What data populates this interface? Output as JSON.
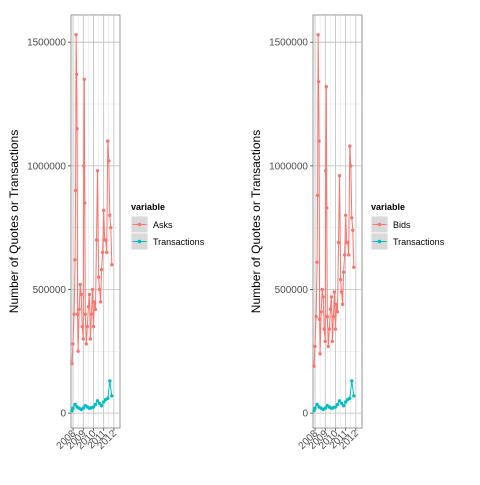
{
  "colors": {
    "asks": "#F8766D",
    "transactions": "#00BFC4",
    "panel_background": "#FFFFFF",
    "grid_major": "#BEBEBE",
    "grid_minor": "#E3E3E3",
    "legend_key_background": "#D9D9D9"
  },
  "chart_data": [
    {
      "type": "line",
      "ylabel": "Number of Quotes or Transactions",
      "xlabel": "",
      "x_ticks": [
        "2008",
        "2009",
        "2010",
        "2011",
        "2012"
      ],
      "y_ticks": [
        "0",
        "500000",
        "1000000",
        "1500000"
      ],
      "x_range": [
        2007.8,
        2012.6
      ],
      "y_range": [
        -60000,
        1610000
      ],
      "grid": true,
      "legend": {
        "title": "variable",
        "placement": "right",
        "entries": [
          "Asks",
          "Transactions"
        ]
      },
      "series": [
        {
          "name": "Asks",
          "color": "#F8766D",
          "values": [
            [
              2007.9,
              200000
            ],
            [
              2008.0,
              280000
            ],
            [
              2008.1,
              400000
            ],
            [
              2008.2,
              620000
            ],
            [
              2008.25,
              900000
            ],
            [
              2008.3,
              1530000
            ],
            [
              2008.35,
              1370000
            ],
            [
              2008.4,
              1150000
            ],
            [
              2008.45,
              400000
            ],
            [
              2008.5,
              250000
            ],
            [
              2008.6,
              420000
            ],
            [
              2008.7,
              520000
            ],
            [
              2008.8,
              480000
            ],
            [
              2008.9,
              350000
            ],
            [
              2009.0,
              300000
            ],
            [
              2009.05,
              1000000
            ],
            [
              2009.1,
              1350000
            ],
            [
              2009.15,
              850000
            ],
            [
              2009.2,
              400000
            ],
            [
              2009.3,
              280000
            ],
            [
              2009.4,
              350000
            ],
            [
              2009.5,
              430000
            ],
            [
              2009.6,
              480000
            ],
            [
              2009.7,
              300000
            ],
            [
              2009.8,
              400000
            ],
            [
              2009.9,
              500000
            ],
            [
              2010.0,
              350000
            ],
            [
              2010.1,
              450000
            ],
            [
              2010.2,
              420000
            ],
            [
              2010.3,
              700000
            ],
            [
              2010.4,
              980000
            ],
            [
              2010.5,
              550000
            ],
            [
              2010.6,
              500000
            ],
            [
              2010.7,
              450000
            ],
            [
              2010.8,
              580000
            ],
            [
              2010.9,
              650000
            ],
            [
              2011.0,
              820000
            ],
            [
              2011.1,
              700000
            ],
            [
              2011.2,
              700000
            ],
            [
              2011.3,
              650000
            ],
            [
              2011.4,
              1100000
            ],
            [
              2011.5,
              1020000
            ],
            [
              2011.6,
              800000
            ],
            [
              2011.7,
              750000
            ],
            [
              2011.8,
              600000
            ]
          ]
        },
        {
          "name": "Transactions",
          "color": "#00BFC4",
          "values": [
            [
              2007.9,
              10000
            ],
            [
              2008.0,
              20000
            ],
            [
              2008.2,
              35000
            ],
            [
              2008.4,
              25000
            ],
            [
              2008.6,
              20000
            ],
            [
              2008.8,
              15000
            ],
            [
              2009.0,
              20000
            ],
            [
              2009.2,
              30000
            ],
            [
              2009.4,
              25000
            ],
            [
              2009.6,
              20000
            ],
            [
              2009.8,
              22000
            ],
            [
              2010.0,
              25000
            ],
            [
              2010.2,
              35000
            ],
            [
              2010.4,
              50000
            ],
            [
              2010.6,
              40000
            ],
            [
              2010.8,
              30000
            ],
            [
              2011.0,
              45000
            ],
            [
              2011.2,
              55000
            ],
            [
              2011.4,
              60000
            ],
            [
              2011.6,
              130000
            ],
            [
              2011.8,
              70000
            ]
          ]
        }
      ]
    },
    {
      "type": "line",
      "ylabel": "Number of Quotes or Transactions",
      "xlabel": "",
      "x_ticks": [
        "2008",
        "2009",
        "2010",
        "2011",
        "2012"
      ],
      "y_ticks": [
        "0",
        "500000",
        "1000000",
        "1500000"
      ],
      "x_range": [
        2007.8,
        2012.6
      ],
      "y_range": [
        -60000,
        1610000
      ],
      "grid": true,
      "legend": {
        "title": "variable",
        "placement": "right",
        "entries": [
          "Bids",
          "Transactions"
        ]
      },
      "series": [
        {
          "name": "Bids",
          "color": "#F8766D",
          "values": [
            [
              2007.9,
              190000
            ],
            [
              2008.0,
              270000
            ],
            [
              2008.1,
              390000
            ],
            [
              2008.2,
              610000
            ],
            [
              2008.25,
              880000
            ],
            [
              2008.3,
              1530000
            ],
            [
              2008.35,
              1340000
            ],
            [
              2008.4,
              1100000
            ],
            [
              2008.45,
              380000
            ],
            [
              2008.5,
              240000
            ],
            [
              2008.6,
              410000
            ],
            [
              2008.7,
              500000
            ],
            [
              2008.8,
              470000
            ],
            [
              2008.9,
              340000
            ],
            [
              2009.0,
              290000
            ],
            [
              2009.05,
              980000
            ],
            [
              2009.1,
              1320000
            ],
            [
              2009.15,
              830000
            ],
            [
              2009.2,
              390000
            ],
            [
              2009.3,
              270000
            ],
            [
              2009.4,
              340000
            ],
            [
              2009.5,
              420000
            ],
            [
              2009.6,
              470000
            ],
            [
              2009.7,
              290000
            ],
            [
              2009.8,
              390000
            ],
            [
              2009.9,
              490000
            ],
            [
              2010.0,
              340000
            ],
            [
              2010.1,
              440000
            ],
            [
              2010.2,
              410000
            ],
            [
              2010.3,
              690000
            ],
            [
              2010.4,
              960000
            ],
            [
              2010.5,
              540000
            ],
            [
              2010.6,
              490000
            ],
            [
              2010.7,
              440000
            ],
            [
              2010.8,
              570000
            ],
            [
              2010.9,
              640000
            ],
            [
              2011.0,
              800000
            ],
            [
              2011.1,
              690000
            ],
            [
              2011.2,
              690000
            ],
            [
              2011.3,
              640000
            ],
            [
              2011.4,
              1080000
            ],
            [
              2011.5,
              1000000
            ],
            [
              2011.6,
              790000
            ],
            [
              2011.7,
              740000
            ],
            [
              2011.8,
              590000
            ]
          ]
        },
        {
          "name": "Transactions",
          "color": "#00BFC4",
          "values": [
            [
              2007.9,
              10000
            ],
            [
              2008.0,
              20000
            ],
            [
              2008.2,
              35000
            ],
            [
              2008.4,
              25000
            ],
            [
              2008.6,
              20000
            ],
            [
              2008.8,
              15000
            ],
            [
              2009.0,
              20000
            ],
            [
              2009.2,
              30000
            ],
            [
              2009.4,
              25000
            ],
            [
              2009.6,
              20000
            ],
            [
              2009.8,
              22000
            ],
            [
              2010.0,
              25000
            ],
            [
              2010.2,
              35000
            ],
            [
              2010.4,
              50000
            ],
            [
              2010.6,
              40000
            ],
            [
              2010.8,
              30000
            ],
            [
              2011.0,
              45000
            ],
            [
              2011.2,
              55000
            ],
            [
              2011.4,
              60000
            ],
            [
              2011.6,
              130000
            ],
            [
              2011.8,
              70000
            ]
          ]
        }
      ]
    }
  ]
}
